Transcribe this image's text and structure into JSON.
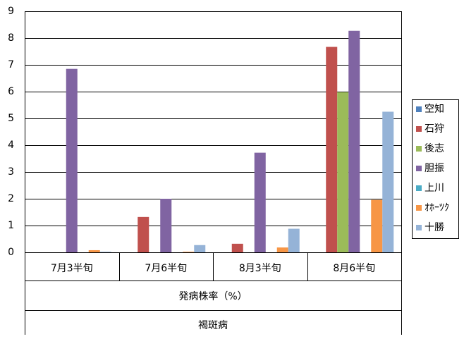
{
  "chart_data": {
    "type": "bar",
    "categories": [
      "7月3半旬",
      "7月6半旬",
      "8月3半旬",
      "8月6半旬"
    ],
    "x_label": "発病株率（%）",
    "x_label_2": "褐斑病",
    "series": [
      {
        "name": "空知",
        "color": "#4f81bd",
        "values": [
          0,
          0,
          0,
          0
        ]
      },
      {
        "name": "石狩",
        "color": "#c0504d",
        "values": [
          0,
          1.32,
          0.32,
          7.67
        ]
      },
      {
        "name": "後志",
        "color": "#9bbb59",
        "values": [
          0,
          0,
          0,
          5.98
        ]
      },
      {
        "name": "胆振",
        "color": "#8064a2",
        "values": [
          6.85,
          2.0,
          3.72,
          8.27
        ]
      },
      {
        "name": "上川",
        "color": "#4bacc6",
        "values": [
          0,
          0,
          0,
          0
        ]
      },
      {
        "name": "ｵﾎｰﾂｸ",
        "color": "#f79646",
        "values": [
          0.08,
          0.02,
          0.18,
          1.96
        ]
      },
      {
        "name": "十勝",
        "color": "#95b3d7",
        "values": [
          0.02,
          0.27,
          0.88,
          5.25
        ]
      }
    ],
    "ylim": [
      0,
      9
    ],
    "yticks": [
      0,
      1,
      2,
      3,
      4,
      5,
      6,
      7,
      8,
      9
    ],
    "grid": true,
    "legend": "right"
  }
}
